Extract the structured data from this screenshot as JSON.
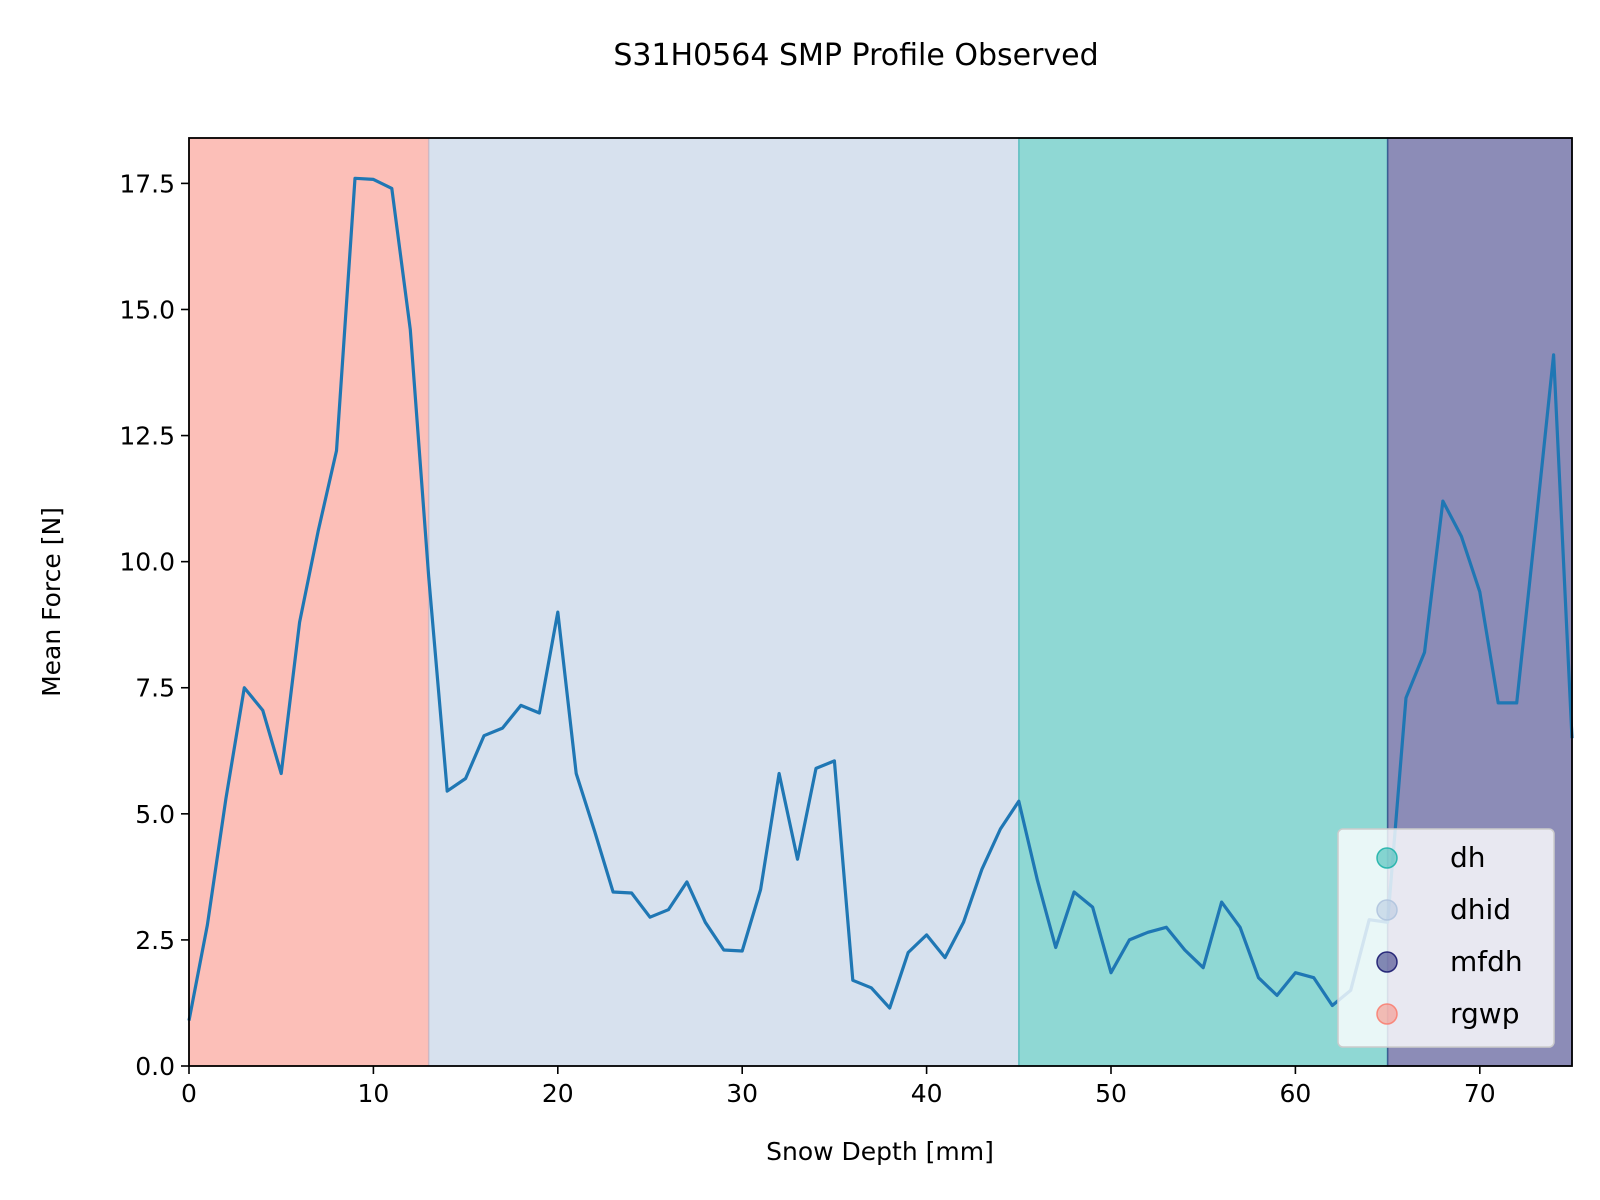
{
  "chart_data": {
    "type": "line",
    "title": "S31H0564 SMP Profile Observed",
    "xlabel": "Snow Depth [mm]",
    "ylabel": "Mean Force [N]",
    "xlim": [
      0,
      75
    ],
    "ylim": [
      0,
      18.4
    ],
    "xticks": [
      0,
      10,
      20,
      30,
      40,
      50,
      60,
      70
    ],
    "yticks": [
      0.0,
      2.5,
      5.0,
      7.5,
      10.0,
      12.5,
      15.0,
      17.5
    ],
    "grid": false,
    "legend_position": "lower-right",
    "regions": [
      {
        "label": "rgwp",
        "x_start": 0,
        "x_end": 13,
        "color": "#fa8072"
      },
      {
        "label": "dhid",
        "x_start": 13,
        "x_end": 45,
        "color": "#b0c4de"
      },
      {
        "label": "dh",
        "x_start": 45,
        "x_end": 65,
        "color": "#20b2aa"
      },
      {
        "label": "mfdh",
        "x_start": 65,
        "x_end": 75,
        "color": "#191970"
      }
    ],
    "legend": [
      {
        "label": "dh",
        "color": "#20b2aa"
      },
      {
        "label": "dhid",
        "color": "#b0c4de"
      },
      {
        "label": "mfdh",
        "color": "#191970"
      },
      {
        "label": "rgwp",
        "color": "#fa8072"
      }
    ],
    "series": [
      {
        "color": "#1f77b4",
        "x": [
          0,
          1,
          2,
          3,
          4,
          5,
          6,
          7,
          8,
          9,
          10,
          11,
          12,
          13,
          14,
          15,
          16,
          17,
          18,
          19,
          20,
          21,
          22,
          23,
          24,
          25,
          26,
          27,
          28,
          29,
          30,
          31,
          32,
          33,
          34,
          35,
          36,
          37,
          38,
          39,
          40,
          41,
          42,
          43,
          44,
          45,
          46,
          47,
          48,
          49,
          50,
          51,
          52,
          53,
          54,
          55,
          56,
          57,
          58,
          59,
          60,
          61,
          62,
          63,
          64,
          65,
          66,
          67,
          68,
          69,
          70,
          71,
          72,
          73,
          74,
          75
        ],
        "y": [
          0.9,
          2.8,
          5.3,
          7.5,
          7.05,
          5.8,
          8.8,
          10.6,
          12.2,
          17.6,
          17.58,
          17.4,
          14.6,
          9.7,
          5.45,
          5.7,
          6.55,
          6.7,
          7.15,
          7.0,
          9.0,
          5.8,
          4.65,
          3.45,
          3.43,
          2.95,
          3.1,
          3.65,
          2.85,
          2.3,
          2.28,
          3.5,
          5.8,
          4.1,
          5.9,
          6.05,
          1.7,
          1.55,
          1.15,
          2.25,
          2.6,
          2.15,
          2.85,
          3.9,
          4.7,
          5.25,
          3.7,
          2.35,
          3.45,
          3.15,
          1.85,
          2.5,
          2.65,
          2.75,
          2.3,
          1.95,
          3.25,
          2.75,
          1.75,
          1.4,
          1.85,
          1.75,
          1.2,
          1.5,
          2.9,
          2.85,
          7.3,
          8.2,
          11.2,
          10.5,
          9.4,
          7.2,
          7.2,
          10.6,
          14.1,
          6.5
        ]
      }
    ]
  }
}
